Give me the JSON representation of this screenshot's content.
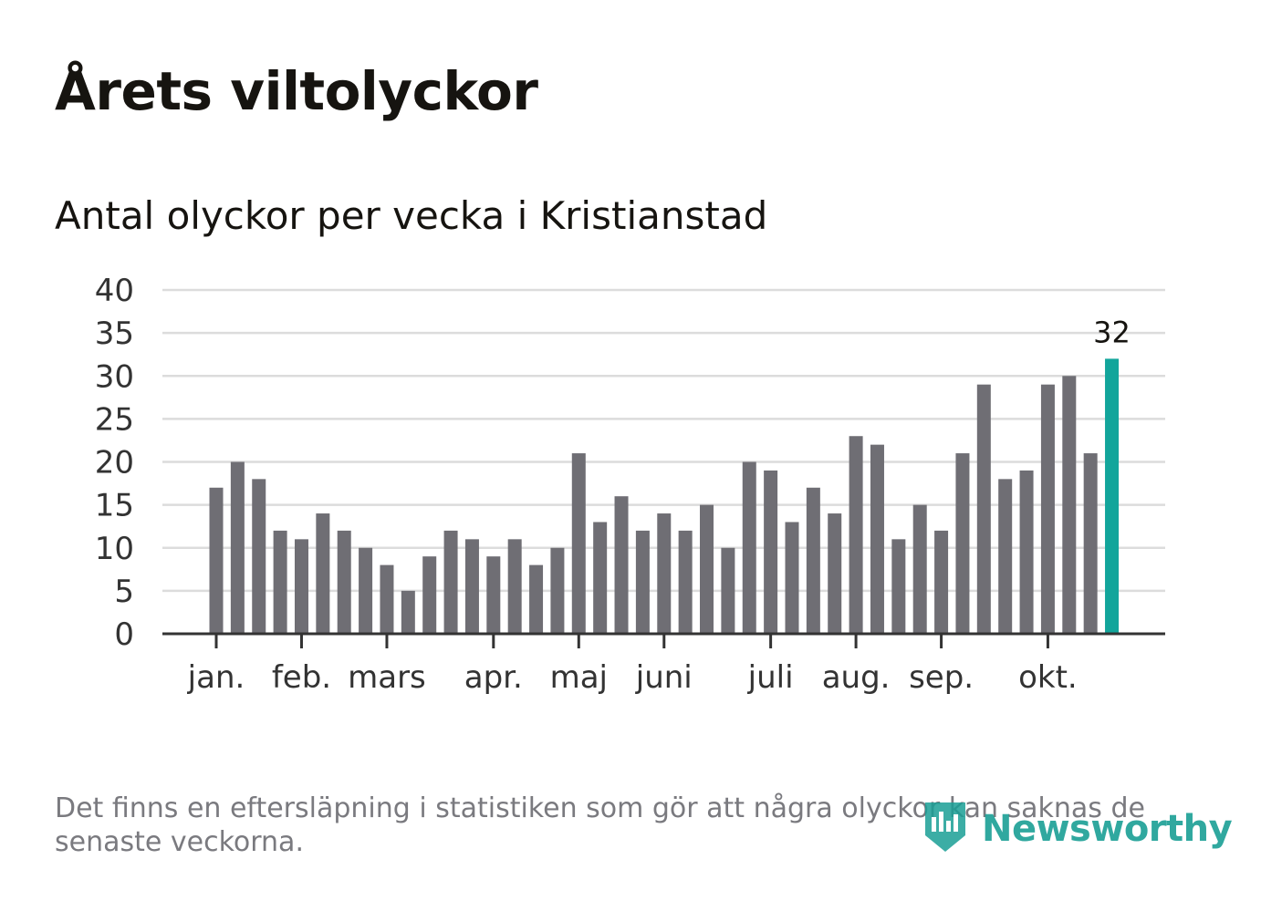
{
  "title": "Årets viltolyckor",
  "subtitle": "Antal olyckor per vecka i Kristianstad",
  "footnote": "Det finns en eftersläpning i statistiken som gör att några olyckor kan saknas de senaste veckorna.",
  "brand": {
    "name": "Newsworthy",
    "icon": "bar-chart-shield-icon"
  },
  "colors": {
    "bar": "#6f6e74",
    "highlight": "#12a59b",
    "grid": "#dcdcdc",
    "axis": "#333333",
    "text": "#161410"
  },
  "chart_data": {
    "type": "bar",
    "title": "Årets viltolyckor",
    "subtitle": "Antal olyckor per vecka i Kristianstad",
    "xlabel": "",
    "ylabel": "",
    "ylim": [
      0,
      40
    ],
    "yticks": [
      0,
      5,
      10,
      15,
      20,
      25,
      30,
      35,
      40
    ],
    "grid": true,
    "values": [
      17,
      20,
      18,
      12,
      11,
      14,
      12,
      10,
      8,
      5,
      9,
      12,
      11,
      9,
      11,
      8,
      10,
      21,
      13,
      16,
      12,
      14,
      12,
      15,
      10,
      20,
      19,
      13,
      17,
      14,
      23,
      22,
      11,
      15,
      12,
      21,
      29,
      18,
      19,
      29,
      30,
      21,
      32
    ],
    "highlight_index": 42,
    "highlight_label": "32",
    "month_labels": [
      {
        "label": "jan.",
        "week_index": 0
      },
      {
        "label": "feb.",
        "week_index": 4
      },
      {
        "label": "mars",
        "week_index": 8
      },
      {
        "label": "apr.",
        "week_index": 13
      },
      {
        "label": "maj",
        "week_index": 17
      },
      {
        "label": "juni",
        "week_index": 21
      },
      {
        "label": "juli",
        "week_index": 26
      },
      {
        "label": "aug.",
        "week_index": 30
      },
      {
        "label": "sep.",
        "week_index": 34
      },
      {
        "label": "okt.",
        "week_index": 39
      }
    ]
  }
}
